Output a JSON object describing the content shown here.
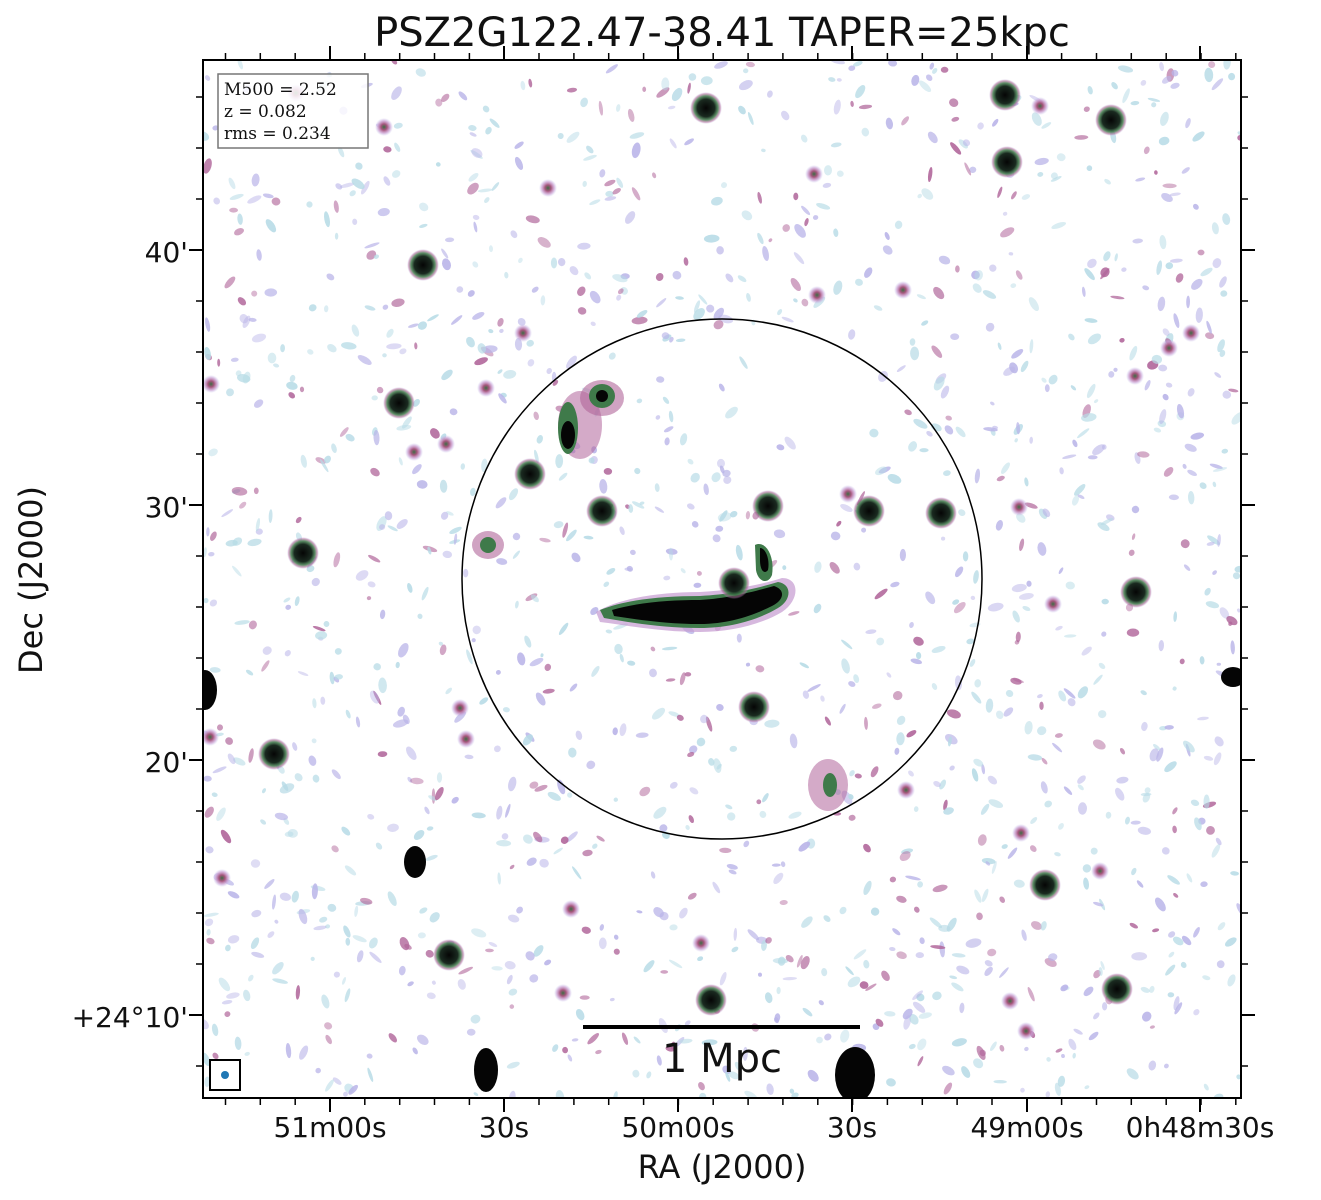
{
  "title": "PSZ2G122.47-38.41 TAPER=25kpc",
  "axes": {
    "xlabel": "RA (J2000)",
    "ylabel": "Dec (J2000)",
    "x_ticks": [
      "51m00s",
      "30s",
      "50m00s",
      "30s",
      "49m00s",
      "0h48m30s"
    ],
    "y_ticks": [
      "40'",
      "30'",
      "20'",
      "+24°10'"
    ]
  },
  "info_box": {
    "line1": "M500 = 2.52",
    "line2": "z = 0.082",
    "line3": "rms = 0.234"
  },
  "scale_bar": {
    "label": "1 Mpc"
  },
  "colors": {
    "frame": "#000000",
    "compact_source": "#050505",
    "source_halo_green": "#3f7a4a",
    "noise_magenta": "#b0659a",
    "noise_lavender": "#b9b4e8",
    "noise_lightblue": "#b7dbe6",
    "beam": "#1f77b4"
  }
}
